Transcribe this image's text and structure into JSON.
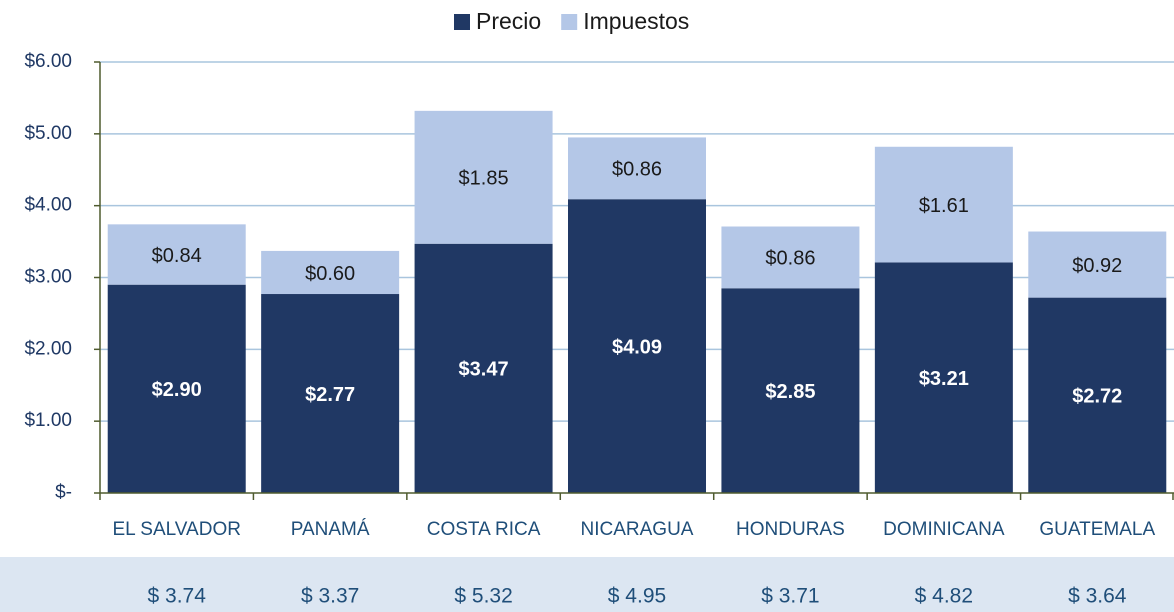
{
  "chart_data": {
    "type": "stacked_bar",
    "categories": [
      "EL SALVADOR",
      "PANAMÁ",
      "COSTA RICA",
      "NICARAGUA",
      "HONDURAS",
      "DOMINICANA",
      "GUATEMALA"
    ],
    "series": [
      {
        "name": "Precio",
        "color": "#203864",
        "values": [
          2.9,
          2.77,
          3.47,
          4.09,
          2.85,
          3.21,
          2.72
        ],
        "value_labels": [
          "$2.90",
          "$2.77",
          "$3.47",
          "$4.09",
          "$2.85",
          "$3.21",
          "$2.72"
        ]
      },
      {
        "name": "Impuestos",
        "color": "#b4c7e7",
        "values": [
          0.84,
          0.6,
          1.85,
          0.86,
          0.86,
          1.61,
          0.92
        ],
        "value_labels": [
          "$0.84",
          "$0.60",
          "$1.85",
          "$0.86",
          "$0.86",
          "$1.61",
          "$0.92"
        ]
      }
    ],
    "ylim": [
      0,
      6
    ],
    "yticks": [
      {
        "value": 0,
        "label": "$-"
      },
      {
        "value": 1,
        "label": "$1.00"
      },
      {
        "value": 2,
        "label": "$2.00"
      },
      {
        "value": 3,
        "label": "$3.00"
      },
      {
        "value": 4,
        "label": "$4.00"
      },
      {
        "value": 5,
        "label": "$5.00"
      },
      {
        "value": 6,
        "label": "$6.00"
      }
    ],
    "grid": true,
    "legend": "top",
    "totals": [
      "$ 3.74",
      "$ 3.37",
      "$ 5.32",
      "$ 4.95",
      "$ 3.71",
      "$ 4.82",
      "$ 3.64"
    ]
  }
}
